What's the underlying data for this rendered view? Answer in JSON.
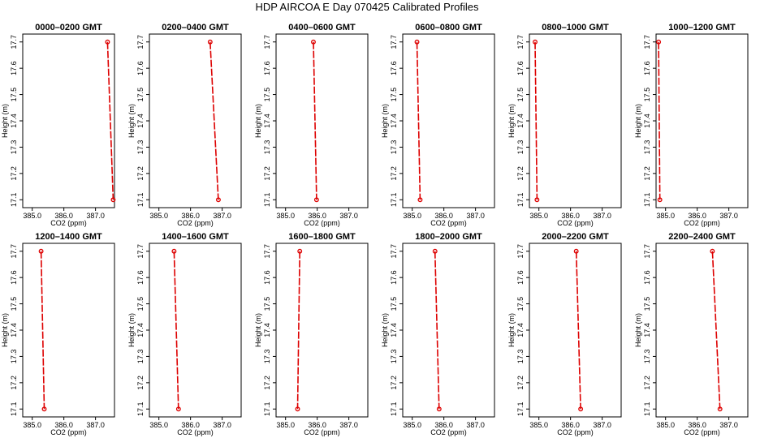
{
  "title": "HDP AIRCOA E  Day 070425  Calibrated Profiles",
  "colors": {
    "series": "#dd0000",
    "frame": "#000000",
    "background": "#ffffff"
  },
  "chart_data": [
    {
      "type": "line",
      "title": "0000–0200 GMT",
      "xlabel": "CO2 (ppm)",
      "ylabel": "Height (m)",
      "xlim": [
        384.7,
        387.6
      ],
      "ylim": [
        17.07,
        17.73
      ],
      "xticks": [
        "385.0",
        "386.0",
        "387.0"
      ],
      "yticks": [
        "17.1",
        "17.2",
        "17.3",
        "17.4",
        "17.5",
        "17.6",
        "17.7"
      ],
      "x": [
        387.38,
        387.56
      ],
      "y": [
        17.7,
        17.1
      ]
    },
    {
      "type": "line",
      "title": "0200–0400 GMT",
      "xlabel": "CO2 (ppm)",
      "ylabel": "Height (m)",
      "xlim": [
        384.7,
        387.6
      ],
      "ylim": [
        17.07,
        17.73
      ],
      "xticks": [
        "385.0",
        "386.0",
        "387.0"
      ],
      "yticks": [
        "17.1",
        "17.2",
        "17.3",
        "17.4",
        "17.5",
        "17.6",
        "17.7"
      ],
      "x": [
        386.62,
        386.88
      ],
      "y": [
        17.7,
        17.1
      ]
    },
    {
      "type": "line",
      "title": "0400–0600 GMT",
      "xlabel": "CO2 (ppm)",
      "ylabel": "Height (m)",
      "xlim": [
        384.7,
        387.6
      ],
      "ylim": [
        17.07,
        17.73
      ],
      "xticks": [
        "385.0",
        "386.0",
        "387.0"
      ],
      "yticks": [
        "17.1",
        "17.2",
        "17.3",
        "17.4",
        "17.5",
        "17.6",
        "17.7"
      ],
      "x": [
        385.88,
        385.98
      ],
      "y": [
        17.7,
        17.1
      ]
    },
    {
      "type": "line",
      "title": "0600–0800 GMT",
      "xlabel": "CO2 (ppm)",
      "ylabel": "Height (m)",
      "xlim": [
        384.7,
        387.6
      ],
      "ylim": [
        17.07,
        17.73
      ],
      "xticks": [
        "385.0",
        "386.0",
        "387.0"
      ],
      "yticks": [
        "17.1",
        "17.2",
        "17.3",
        "17.4",
        "17.5",
        "17.6",
        "17.7"
      ],
      "x": [
        385.15,
        385.25
      ],
      "y": [
        17.7,
        17.1
      ]
    },
    {
      "type": "line",
      "title": "0800–1000 GMT",
      "xlabel": "CO2 (ppm)",
      "ylabel": "Height (m)",
      "xlim": [
        384.7,
        387.6
      ],
      "ylim": [
        17.07,
        17.73
      ],
      "xticks": [
        "385.0",
        "386.0",
        "387.0"
      ],
      "yticks": [
        "17.1",
        "17.2",
        "17.3",
        "17.4",
        "17.5",
        "17.6",
        "17.7"
      ],
      "x": [
        384.88,
        384.94
      ],
      "y": [
        17.7,
        17.1
      ]
    },
    {
      "type": "line",
      "title": "1000–1200 GMT",
      "xlabel": "CO2 (ppm)",
      "ylabel": "Height (m)",
      "xlim": [
        384.7,
        387.6
      ],
      "ylim": [
        17.07,
        17.73
      ],
      "xticks": [
        "385.0",
        "386.0",
        "387.0"
      ],
      "yticks": [
        "17.1",
        "17.2",
        "17.3",
        "17.4",
        "17.5",
        "17.6",
        "17.7"
      ],
      "x": [
        384.78,
        384.82
      ],
      "y": [
        17.7,
        17.1
      ]
    },
    {
      "type": "line",
      "title": "1200–1400 GMT",
      "xlabel": "CO2 (ppm)",
      "ylabel": "Height (m)",
      "xlim": [
        384.7,
        387.6
      ],
      "ylim": [
        17.07,
        17.73
      ],
      "xticks": [
        "385.0",
        "386.0",
        "387.0"
      ],
      "yticks": [
        "17.1",
        "17.2",
        "17.3",
        "17.4",
        "17.5",
        "17.6",
        "17.7"
      ],
      "x": [
        385.28,
        385.38
      ],
      "y": [
        17.7,
        17.1
      ]
    },
    {
      "type": "line",
      "title": "1400–1600 GMT",
      "xlabel": "CO2 (ppm)",
      "ylabel": "Height (m)",
      "xlim": [
        384.7,
        387.6
      ],
      "ylim": [
        17.07,
        17.73
      ],
      "xticks": [
        "385.0",
        "386.0",
        "387.0"
      ],
      "yticks": [
        "17.1",
        "17.2",
        "17.3",
        "17.4",
        "17.5",
        "17.6",
        "17.7"
      ],
      "x": [
        385.48,
        385.62
      ],
      "y": [
        17.7,
        17.1
      ]
    },
    {
      "type": "line",
      "title": "1600–1800 GMT",
      "xlabel": "CO2 (ppm)",
      "ylabel": "Height (m)",
      "xlim": [
        384.7,
        387.6
      ],
      "ylim": [
        17.07,
        17.73
      ],
      "xticks": [
        "385.0",
        "386.0",
        "387.0"
      ],
      "yticks": [
        "17.1",
        "17.2",
        "17.3",
        "17.4",
        "17.5",
        "17.6",
        "17.7"
      ],
      "x": [
        385.45,
        385.38
      ],
      "y": [
        17.7,
        17.1
      ]
    },
    {
      "type": "line",
      "title": "1800–2000 GMT",
      "xlabel": "CO2 (ppm)",
      "ylabel": "Height (m)",
      "xlim": [
        384.7,
        387.6
      ],
      "ylim": [
        17.07,
        17.73
      ],
      "xticks": [
        "385.0",
        "386.0",
        "387.0"
      ],
      "yticks": [
        "17.1",
        "17.2",
        "17.3",
        "17.4",
        "17.5",
        "17.6",
        "17.7"
      ],
      "x": [
        385.72,
        385.85
      ],
      "y": [
        17.7,
        17.1
      ]
    },
    {
      "type": "line",
      "title": "2000–2200 GMT",
      "xlabel": "CO2 (ppm)",
      "ylabel": "Height (m)",
      "xlim": [
        384.7,
        387.6
      ],
      "ylim": [
        17.07,
        17.73
      ],
      "xticks": [
        "385.0",
        "386.0",
        "387.0"
      ],
      "yticks": [
        "17.1",
        "17.2",
        "17.3",
        "17.4",
        "17.5",
        "17.6",
        "17.7"
      ],
      "x": [
        386.18,
        386.32
      ],
      "y": [
        17.7,
        17.1
      ]
    },
    {
      "type": "line",
      "title": "2200–2400 GMT",
      "xlabel": "CO2 (ppm)",
      "ylabel": "Height (m)",
      "xlim": [
        384.7,
        387.6
      ],
      "ylim": [
        17.07,
        17.73
      ],
      "xticks": [
        "385.0",
        "386.0",
        "387.0"
      ],
      "yticks": [
        "17.1",
        "17.2",
        "17.3",
        "17.4",
        "17.5",
        "17.6",
        "17.7"
      ],
      "x": [
        386.48,
        386.72
      ],
      "y": [
        17.7,
        17.1
      ]
    }
  ]
}
